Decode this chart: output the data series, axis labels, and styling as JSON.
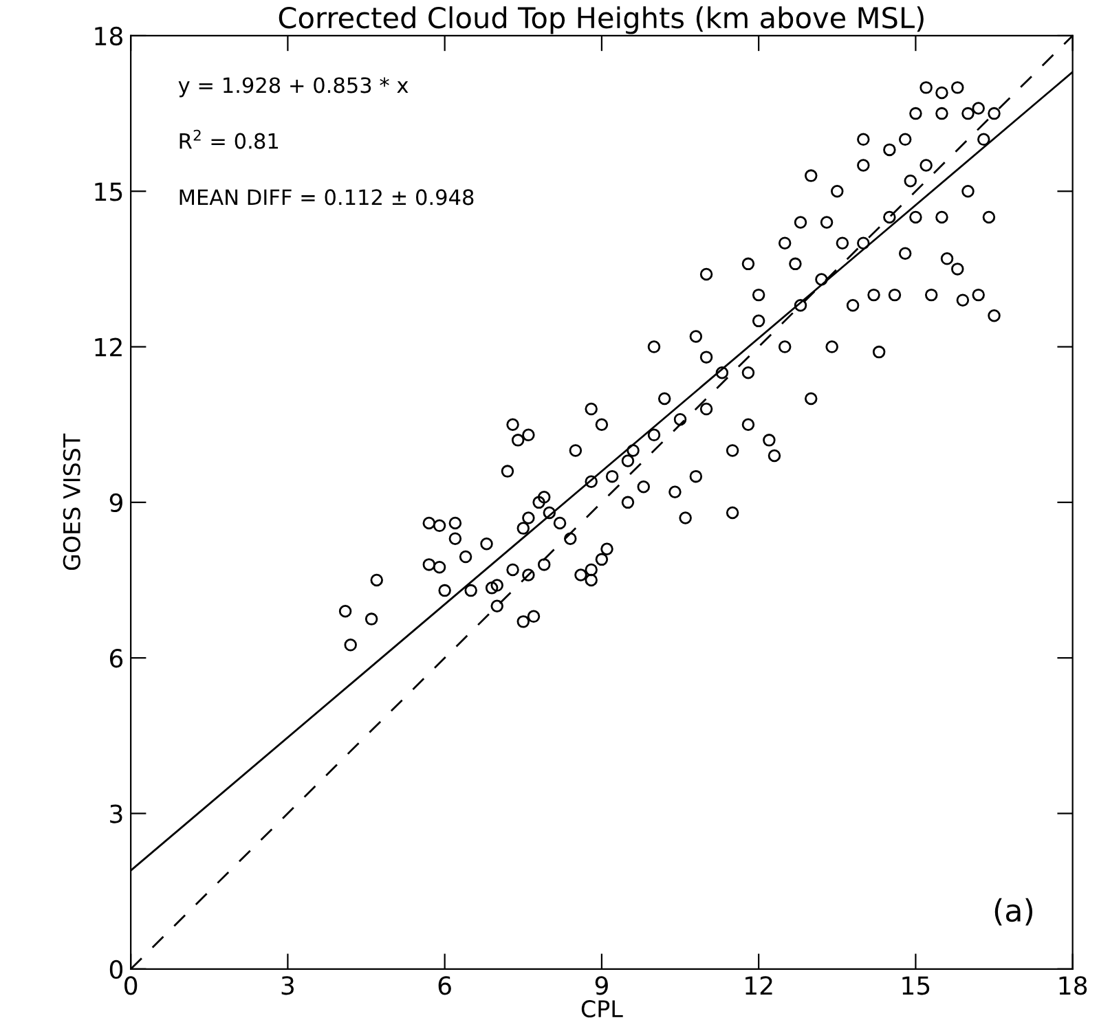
{
  "chart_data": {
    "type": "scatter",
    "title": "Corrected Cloud Top Heights (km above MSL)",
    "xlabel": "CPL",
    "ylabel": "GOES VISST",
    "xlim": [
      0,
      18
    ],
    "ylim": [
      0,
      18
    ],
    "xticks": [
      0,
      3,
      6,
      9,
      12,
      15,
      18
    ],
    "yticks": [
      0,
      3,
      6,
      9,
      12,
      15,
      18
    ],
    "grid": false,
    "legend": false,
    "annotations": [
      "y = 1.928 + 0.853 * x",
      "R$^{2}$ = 0.81",
      "MEAN DIFF = 0.112 ± 0.948",
      "(a)"
    ],
    "series": [
      {
        "marker": "circle",
        "color": "#000000",
        "x": [
          4.1,
          4.2,
          4.7,
          4.6,
          5.7,
          5.9,
          5.7,
          5.9,
          6.2,
          6.2,
          6.0,
          6.4,
          6.5,
          6.8,
          6.9,
          7.0,
          7.0,
          7.3,
          7.4,
          7.6,
          7.2,
          7.3,
          7.5,
          7.6,
          7.5,
          7.7,
          7.8,
          7.9,
          7.6,
          7.9,
          8.2,
          8.4,
          8.6,
          8.8,
          8.8,
          9.0,
          9.1,
          9.0,
          8.8,
          8.5,
          8.8,
          9.2,
          9.5,
          9.8,
          9.6,
          10.0,
          10.0,
          10.2,
          10.4,
          10.6,
          10.8,
          11.0,
          11.0,
          11.3,
          11.5,
          11.5,
          11.8,
          11.8,
          12.0,
          12.2,
          12.3,
          12.5,
          12.5,
          12.8,
          12.8,
          13.0,
          13.2,
          13.5,
          13.4,
          13.6,
          13.8,
          14.0,
          14.0,
          14.2,
          14.3,
          14.5,
          14.5,
          14.8,
          14.8,
          15.0,
          15.0,
          15.2,
          15.2,
          15.3,
          15.5,
          15.5,
          15.8,
          15.8,
          16.0,
          16.0,
          16.2,
          16.2,
          16.5,
          16.5,
          16.4,
          15.9,
          15.6,
          14.6,
          14.9,
          12.0,
          11.0,
          10.5,
          9.5,
          8.0,
          10.8,
          12.7,
          13.3,
          11.8,
          13.0,
          14.0,
          15.5,
          16.3
        ],
        "values": [
          6.9,
          6.25,
          7.5,
          6.75,
          8.6,
          8.55,
          7.8,
          7.75,
          8.3,
          8.6,
          7.3,
          7.95,
          7.3,
          8.2,
          7.35,
          7.4,
          7.0,
          10.5,
          10.2,
          10.3,
          9.6,
          7.7,
          8.5,
          8.7,
          6.7,
          6.8,
          9.0,
          9.1,
          7.6,
          7.8,
          8.6,
          8.3,
          7.6,
          7.7,
          7.5,
          7.9,
          8.1,
          10.5,
          10.8,
          10.0,
          9.4,
          9.5,
          9.0,
          9.3,
          10.0,
          10.3,
          12.0,
          11.0,
          9.2,
          8.7,
          9.5,
          10.8,
          13.4,
          11.5,
          8.8,
          10.0,
          13.6,
          11.5,
          12.5,
          10.2,
          9.9,
          14.0,
          12.0,
          12.8,
          14.4,
          11.0,
          13.3,
          15.0,
          12.0,
          14.0,
          12.8,
          15.5,
          14.0,
          13.0,
          11.9,
          15.8,
          14.5,
          16.0,
          13.8,
          16.5,
          14.5,
          17.0,
          15.5,
          13.0,
          16.5,
          14.5,
          17.0,
          13.5,
          16.5,
          15.0,
          16.6,
          13.0,
          16.5,
          12.6,
          14.5,
          12.9,
          13.7,
          13.0,
          15.2,
          13.0,
          11.8,
          10.6,
          9.8,
          8.8,
          12.2,
          13.6,
          14.4,
          10.5,
          15.3,
          16.0,
          16.9,
          16.0
        ]
      },
      {
        "type": "line",
        "color": "#000000",
        "line_style": "solid",
        "x": [
          0,
          18
        ],
        "values": [
          1.9,
          17.3
        ]
      },
      {
        "type": "line",
        "color": "#000000",
        "line_style": "dashed",
        "x": [
          0,
          18
        ],
        "values": [
          0,
          18
        ]
      }
    ]
  }
}
